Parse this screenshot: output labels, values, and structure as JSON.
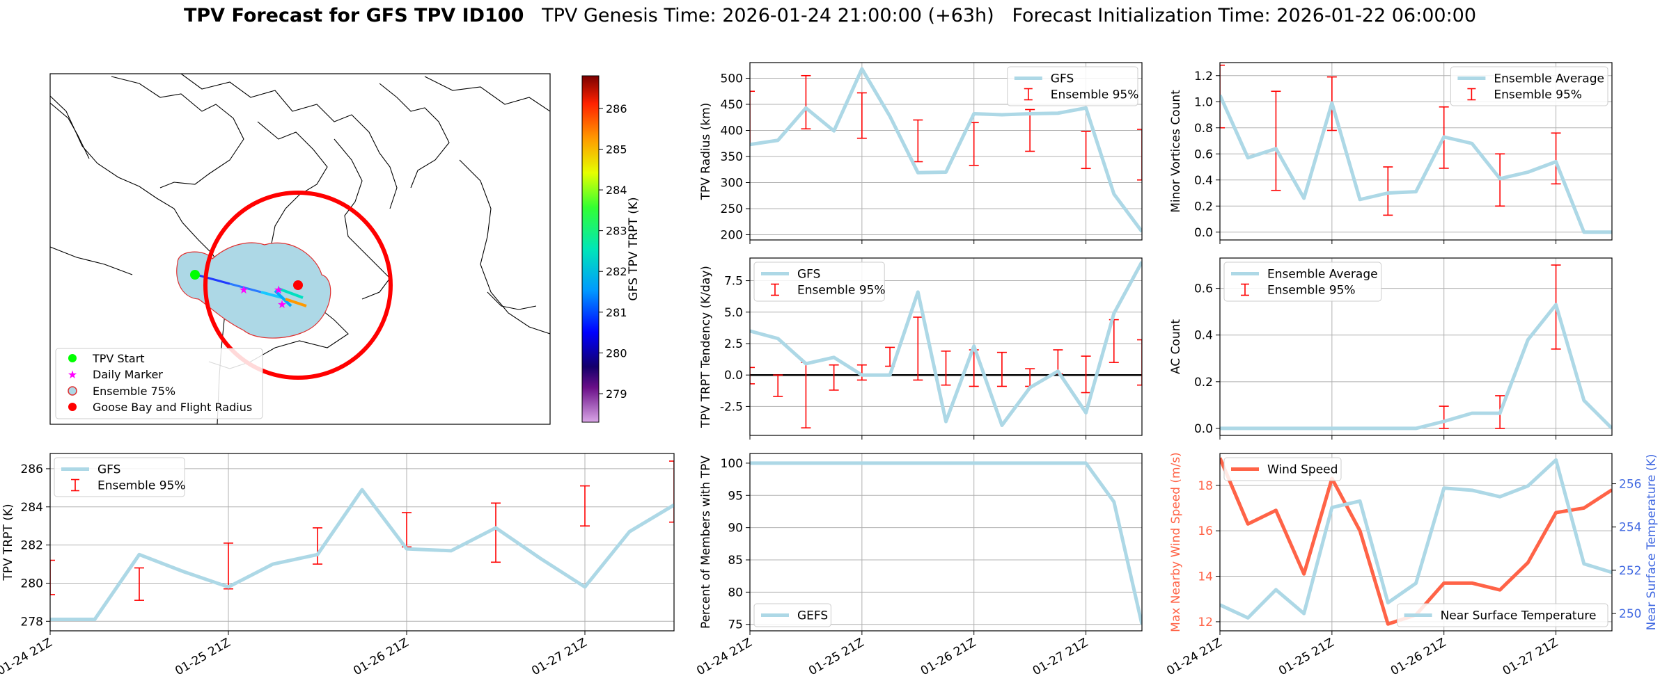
{
  "figure": {
    "title_bold": "TPV Forecast for GFS TPV ID100",
    "title_rest": "TPV Genesis Time: 2026-01-24 21:00:00 (+63h)   Forecast Initialization Time: 2026-01-22 06:00:00"
  },
  "colors": {
    "gfs_line": "#add8e6",
    "error_bar": "#ff0000",
    "wind": "#ff6347",
    "temp_axis": "#4169e1",
    "ensemble_fill": "#add8e6",
    "flight_radius": "#ff0000",
    "start_marker": "#00ff00",
    "daily_marker": "#ff00ff"
  },
  "time_axis": {
    "tick_labels": [
      "01-24 21Z",
      "01-25 21Z",
      "01-26 21Z",
      "01-27 21Z"
    ]
  },
  "map": {
    "legend": [
      "TPV Start",
      "Daily Marker",
      "Ensemble 75%",
      "Goose Bay and Flight Radius"
    ],
    "colorbar_label": "GFS TPV TRPT (K)",
    "colorbar_ticks": [
      "279",
      "280",
      "281",
      "282",
      "283",
      "284",
      "285",
      "286"
    ]
  },
  "chart_data": [
    {
      "id": "radius",
      "type": "line",
      "ylabel": "TPV Radius (km)",
      "ylim": [
        190,
        530
      ],
      "yticks": [
        "200",
        "250",
        "300",
        "350",
        "400",
        "450",
        "500"
      ],
      "legend": [
        "GFS",
        "Ensemble 95%"
      ],
      "series": [
        {
          "name": "GFS",
          "values": [
            373,
            381,
            443,
            399,
            518,
            427,
            319,
            320,
            432,
            430,
            432,
            433,
            443,
            278,
            206
          ]
        }
      ],
      "errorbars": [
        [
          0,
          373,
          475
        ],
        [
          2,
          403,
          505
        ],
        [
          4,
          385,
          472
        ],
        [
          6,
          340,
          420
        ],
        [
          8,
          333,
          415
        ],
        [
          10,
          360,
          440
        ],
        [
          12,
          327,
          398
        ],
        [
          14,
          305,
          402
        ]
      ]
    },
    {
      "id": "minor",
      "type": "line",
      "ylabel": "Minor Vortices Count",
      "ylim": [
        -0.06,
        1.3
      ],
      "yticks": [
        "0.0",
        "0.2",
        "0.4",
        "0.6",
        "0.8",
        "1.0",
        "1.2"
      ],
      "legend": [
        "Ensemble Average",
        "Ensemble 95%"
      ],
      "series": [
        {
          "name": "Ensemble Average",
          "values": [
            1.05,
            0.57,
            0.64,
            0.26,
            0.99,
            0.25,
            0.3,
            0.31,
            0.73,
            0.68,
            0.41,
            0.46,
            0.54,
            0.0,
            0.0
          ]
        }
      ],
      "errorbars": [
        [
          0,
          0.8,
          1.28
        ],
        [
          2,
          0.32,
          1.08
        ],
        [
          4,
          0.78,
          1.19
        ],
        [
          6,
          0.13,
          0.5
        ],
        [
          8,
          0.49,
          0.96
        ],
        [
          10,
          0.2,
          0.6
        ],
        [
          12,
          0.37,
          0.76
        ],
        [
          14,
          0.0,
          0.0
        ]
      ]
    },
    {
      "id": "tendency",
      "type": "line",
      "ylabel": "TPV TRPT Tendency (K/day)",
      "ylim": [
        -4.8,
        9.3
      ],
      "yticks": [
        "-2.5",
        "0.0",
        "2.5",
        "5.0",
        "7.5"
      ],
      "legend": [
        "GFS",
        "Ensemble 95%"
      ],
      "series": [
        {
          "name": "GFS",
          "values": [
            3.5,
            2.9,
            0.9,
            1.4,
            0.0,
            0.0,
            6.6,
            -3.7,
            2.3,
            -4.0,
            -1.0,
            0.3,
            -3.0,
            4.9,
            9.0
          ]
        }
      ],
      "errorbars": [
        [
          0,
          -0.7,
          0.6
        ],
        [
          1,
          -1.7,
          0.0
        ],
        [
          2,
          -4.2,
          1.0
        ],
        [
          3,
          -1.2,
          0.8
        ],
        [
          4,
          -0.4,
          0.8
        ],
        [
          5,
          0.7,
          2.2
        ],
        [
          6,
          -0.4,
          4.6
        ],
        [
          7,
          -0.8,
          1.9
        ],
        [
          8,
          -0.9,
          2.0
        ],
        [
          9,
          -0.9,
          1.8
        ],
        [
          10,
          -0.9,
          0.5
        ],
        [
          11,
          0.1,
          2.0
        ],
        [
          12,
          -1.4,
          1.5
        ],
        [
          13,
          1.0,
          4.4
        ],
        [
          14,
          -0.8,
          2.8
        ]
      ],
      "zero_line": true
    },
    {
      "id": "ac",
      "type": "line",
      "ylabel": "AC Count",
      "ylim": [
        -0.03,
        0.73
      ],
      "yticks": [
        "0.0",
        "0.2",
        "0.4",
        "0.6"
      ],
      "legend": [
        "Ensemble Average",
        "Ensemble 95%"
      ],
      "series": [
        {
          "name": "Ensemble Average",
          "values": [
            0,
            0,
            0,
            0,
            0,
            0,
            0,
            0,
            0.03,
            0.065,
            0.065,
            0.38,
            0.53,
            0.12,
            0.0
          ]
        }
      ],
      "errorbars": [
        [
          2,
          0,
          0
        ],
        [
          4,
          0,
          0
        ],
        [
          6,
          0,
          0
        ],
        [
          8,
          0,
          0.095
        ],
        [
          10,
          0,
          0.14
        ],
        [
          12,
          0.34,
          0.7
        ]
      ]
    },
    {
      "id": "trpt",
      "type": "line",
      "ylabel": "TPV TRPT (K)",
      "ylim": [
        277.5,
        286.8
      ],
      "yticks": [
        "278",
        "280",
        "282",
        "284",
        "286"
      ],
      "legend": [
        "GFS",
        "Ensemble 95%"
      ],
      "series": [
        {
          "name": "GFS",
          "values": [
            278.1,
            278.1,
            281.5,
            280.6,
            279.8,
            281.0,
            281.5,
            284.9,
            281.8,
            281.7,
            282.9,
            281.3,
            279.8,
            282.7,
            284.1
          ]
        }
      ],
      "errorbars": [
        [
          0,
          279.4,
          281.2
        ],
        [
          2,
          279.1,
          280.8
        ],
        [
          4,
          279.7,
          282.1
        ],
        [
          6,
          281.0,
          282.9
        ],
        [
          8,
          281.9,
          283.7
        ],
        [
          10,
          281.1,
          284.2
        ],
        [
          12,
          283.0,
          285.1
        ],
        [
          14,
          283.2,
          286.4
        ]
      ]
    },
    {
      "id": "percent",
      "type": "line",
      "ylabel": "Percent of Members with TPV",
      "ylim": [
        74,
        101.5
      ],
      "yticks": [
        "75",
        "80",
        "85",
        "90",
        "95",
        "100"
      ],
      "legend": [
        "GEFS"
      ],
      "series": [
        {
          "name": "GEFS",
          "values": [
            100,
            100,
            100,
            100,
            100,
            100,
            100,
            100,
            100,
            100,
            100,
            100,
            100,
            94,
            75
          ]
        }
      ]
    },
    {
      "id": "wind_temp",
      "type": "line",
      "ylabel": "Max Nearby Wind Speed (m/s)",
      "ylabel_right": "Near Surface Temperature (K)",
      "ylim": [
        11.6,
        19.4
      ],
      "ylim_right": [
        249.2,
        257.4
      ],
      "yticks": [
        "12",
        "14",
        "16",
        "18"
      ],
      "yticks_right": [
        "250",
        "252",
        "254",
        "256"
      ],
      "legend": [
        "Wind Speed",
        "Near Surface Temperature"
      ],
      "series": [
        {
          "name": "Wind Speed",
          "values": [
            19.2,
            16.3,
            16.9,
            14.1,
            18.3,
            16.0,
            11.9,
            12.3,
            13.7,
            13.7,
            13.4,
            14.6,
            16.8,
            17.0,
            17.8
          ]
        },
        {
          "name": "Near Surface Temperature",
          "values": [
            250.4,
            249.8,
            251.1,
            250.0,
            254.9,
            255.2,
            250.5,
            251.4,
            255.8,
            255.7,
            255.4,
            255.9,
            257.1,
            252.3,
            251.9
          ]
        }
      ]
    }
  ]
}
